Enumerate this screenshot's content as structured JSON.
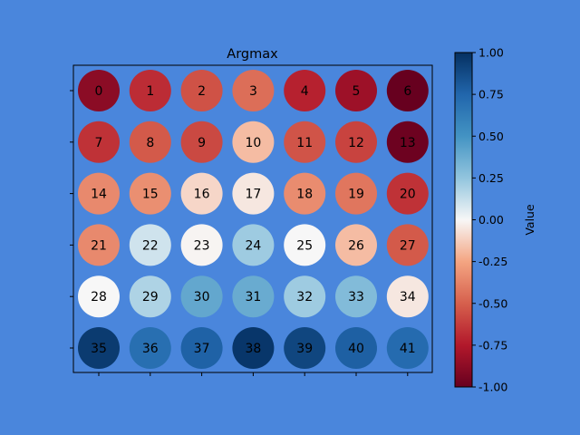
{
  "chart_data": {
    "type": "heatmap",
    "title": "Argmax",
    "xlabel": "",
    "ylabel": "",
    "rows": 6,
    "cols": 7,
    "cell_labels": [
      [
        "0",
        "1",
        "2",
        "3",
        "4",
        "5",
        "6"
      ],
      [
        "7",
        "8",
        "9",
        "10",
        "11",
        "12",
        "13"
      ],
      [
        "14",
        "15",
        "16",
        "17",
        "18",
        "19",
        "20"
      ],
      [
        "21",
        "22",
        "23",
        "24",
        "25",
        "26",
        "27"
      ],
      [
        "28",
        "29",
        "30",
        "31",
        "32",
        "33",
        "34"
      ],
      [
        "35",
        "36",
        "37",
        "38",
        "39",
        "40",
        "41"
      ]
    ],
    "values": [
      [
        -0.88,
        -0.68,
        -0.55,
        -0.45,
        -0.72,
        -0.82,
        -1.0
      ],
      [
        -0.66,
        -0.52,
        -0.58,
        -0.18,
        -0.54,
        -0.6,
        -0.98
      ],
      [
        -0.35,
        -0.33,
        -0.1,
        -0.05,
        -0.34,
        -0.42,
        -0.66
      ],
      [
        -0.35,
        0.1,
        -0.01,
        0.22,
        0.0,
        -0.18,
        -0.52
      ],
      [
        0.0,
        0.18,
        0.4,
        0.38,
        0.22,
        0.3,
        -0.05
      ],
      [
        0.95,
        0.7,
        0.77,
        0.97,
        0.9,
        0.78,
        0.72
      ]
    ],
    "colorbar": {
      "label": "Value",
      "range": [
        -1.0,
        1.0
      ],
      "ticks": [
        "-1.00",
        "-0.75",
        "-0.50",
        "-0.25",
        "0.00",
        "0.25",
        "0.50",
        "0.75",
        "1.00"
      ],
      "colormap": "RdBu"
    },
    "grid": false
  }
}
